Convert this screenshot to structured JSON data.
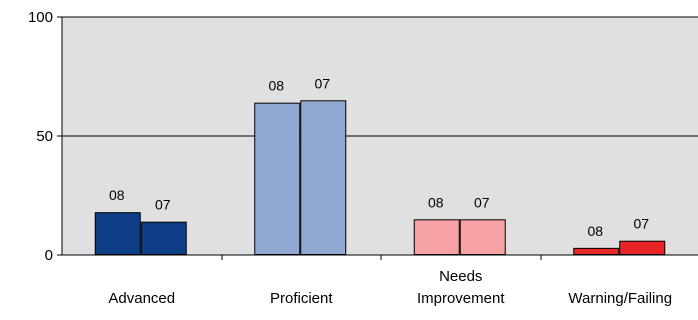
{
  "chart_data": {
    "type": "bar",
    "categories": [
      "Advanced",
      "Proficient",
      "Needs Improvement",
      "Warning/Failing"
    ],
    "category_label_lines": [
      [
        "Advanced"
      ],
      [
        "Proficient"
      ],
      [
        "Needs",
        "Improvement"
      ],
      [
        "Warning/Failing"
      ]
    ],
    "series": [
      {
        "name": "08",
        "values": [
          18,
          64,
          15,
          3
        ],
        "colors": [
          "#0e3f86",
          "#91a8d2",
          "#f6a1a3",
          "#e8262a"
        ]
      },
      {
        "name": "07",
        "values": [
          14,
          65,
          15,
          6
        ],
        "colors": [
          "#0e3f86",
          "#91a8d2",
          "#f6a1a3",
          "#e8262a"
        ]
      }
    ],
    "ylim": [
      0,
      100
    ],
    "yticks": [
      0,
      50,
      100
    ],
    "grid": true,
    "plot_background": "#e0e0e0",
    "legend": "none"
  }
}
